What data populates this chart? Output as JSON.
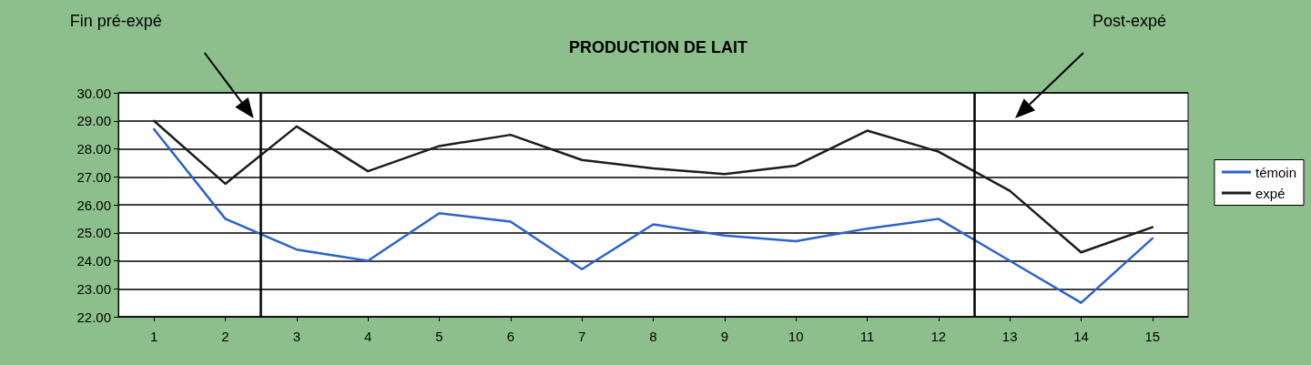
{
  "chart_data": {
    "type": "line",
    "title": "PRODUCTION DE LAIT",
    "x": [
      1,
      2,
      3,
      4,
      5,
      6,
      7,
      8,
      9,
      10,
      11,
      12,
      13,
      14,
      15
    ],
    "xlim": [
      0.5,
      15.5
    ],
    "xticks": [
      1,
      2,
      3,
      4,
      5,
      6,
      7,
      8,
      9,
      10,
      11,
      12,
      13,
      14,
      15
    ],
    "ylim": [
      22,
      30
    ],
    "yticks": [
      {
        "value": 22,
        "label": "22.00"
      },
      {
        "value": 23,
        "label": "23.00"
      },
      {
        "value": 24,
        "label": "24.00"
      },
      {
        "value": 25,
        "label": "25.00"
      },
      {
        "value": 26,
        "label": "26.00"
      },
      {
        "value": 27,
        "label": "27.00"
      },
      {
        "value": 28,
        "label": "28.00"
      },
      {
        "value": 29,
        "label": "29.00"
      },
      {
        "value": 30,
        "label": "30.00"
      }
    ],
    "series": [
      {
        "name": "témoin",
        "color": "#2b63c9",
        "values": [
          28.7,
          25.5,
          24.4,
          24.0,
          25.7,
          25.4,
          23.7,
          25.3,
          24.9,
          24.7,
          25.15,
          25.5,
          24.0,
          22.5,
          24.8
        ]
      },
      {
        "name": "expé",
        "color": "#1c1c1c",
        "values": [
          29.0,
          26.75,
          28.8,
          27.2,
          28.1,
          28.5,
          27.6,
          27.3,
          27.1,
          27.4,
          28.65,
          27.9,
          26.5,
          24.3,
          25.2
        ]
      }
    ],
    "ref_lines": [
      {
        "axis": "x",
        "value": 2.5,
        "color": "#000000"
      },
      {
        "axis": "x",
        "value": 12.5,
        "color": "#000000"
      }
    ],
    "annotations": [
      "Fin pré-expé",
      "Post-expé"
    ],
    "grid": "y",
    "legend": "right",
    "marker": "none",
    "line_style": "solid"
  }
}
